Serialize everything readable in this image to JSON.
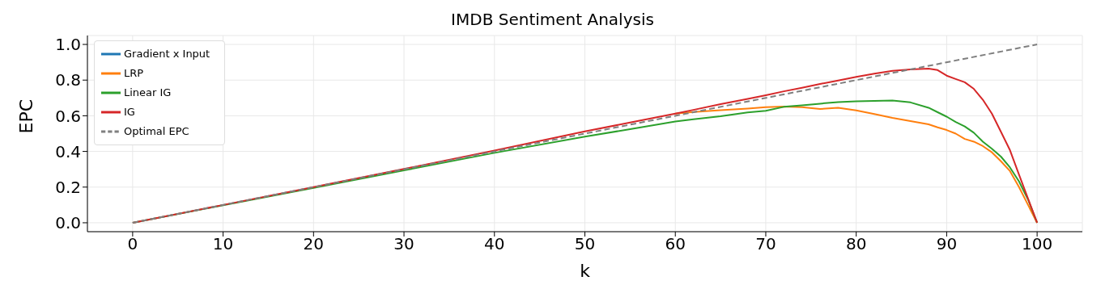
{
  "chart_data": {
    "type": "line",
    "title": "IMDB Sentiment Analysis",
    "xlabel": "k",
    "ylabel": "EPC",
    "x": [
      0,
      10,
      20,
      30,
      40,
      50,
      55,
      60,
      62,
      65,
      68,
      70,
      72,
      74,
      76,
      78,
      80,
      82,
      84,
      86,
      88,
      89,
      90,
      91,
      92,
      93,
      94,
      95,
      96,
      97,
      98,
      99,
      100
    ],
    "series": [
      {
        "name": "Gradient x Input",
        "color": "#1f77b4",
        "values": [
          null,
          null,
          null,
          null,
          null,
          null,
          null,
          null,
          null,
          null,
          null,
          null,
          null,
          null,
          null,
          null,
          null,
          null,
          null,
          null,
          null,
          null,
          null,
          null,
          null,
          null,
          null,
          null,
          null,
          null,
          null,
          null,
          null
        ]
      },
      {
        "name": "LRP",
        "color": "#ff7f0e",
        "values": [
          null,
          null,
          null,
          null,
          null,
          null,
          null,
          0.612,
          0.621,
          0.631,
          0.64,
          0.648,
          0.652,
          0.648,
          0.638,
          0.645,
          0.63,
          0.61,
          0.588,
          0.57,
          0.552,
          0.535,
          0.52,
          0.5,
          0.47,
          0.455,
          0.43,
          0.395,
          0.345,
          0.29,
          0.2,
          0.1,
          0
        ]
      },
      {
        "name": "Linear IG",
        "color": "#2ca02c",
        "values": [
          0,
          0.098,
          0.196,
          0.294,
          0.392,
          0.483,
          0.525,
          0.568,
          0.58,
          0.597,
          0.619,
          0.628,
          0.65,
          0.658,
          0.668,
          0.677,
          0.681,
          0.683,
          0.686,
          0.675,
          0.645,
          0.62,
          0.595,
          0.565,
          0.54,
          0.505,
          0.455,
          0.415,
          0.371,
          0.31,
          0.232,
          0.13,
          0
        ]
      },
      {
        "name": "IG",
        "color": "#d62728",
        "values": [
          0,
          0.1,
          0.2,
          0.302,
          0.405,
          0.512,
          0.562,
          0.612,
          0.633,
          0.665,
          0.695,
          0.715,
          0.737,
          0.757,
          0.778,
          0.798,
          0.818,
          0.836,
          0.852,
          0.86,
          0.864,
          0.856,
          0.825,
          0.806,
          0.788,
          0.751,
          0.69,
          0.612,
          0.51,
          0.407,
          0.27,
          0.135,
          0
        ]
      },
      {
        "name": "Optimal EPC",
        "color": "#7f7f7f",
        "line_style": "dashed",
        "x": [
          0,
          100
        ],
        "values": [
          0,
          1
        ]
      }
    ],
    "xlim": [
      -5,
      105
    ],
    "xticks": [
      0,
      10,
      20,
      30,
      40,
      50,
      60,
      70,
      80,
      90,
      100
    ],
    "ylim": [
      -0.05,
      1.05
    ],
    "yticks": [
      {
        "value": 0,
        "label": "0.0"
      },
      {
        "value": 0.2,
        "label": "0.2"
      },
      {
        "value": 0.4,
        "label": "0.4"
      },
      {
        "value": 0.6,
        "label": "0.6"
      },
      {
        "value": 0.8,
        "label": "0.8"
      },
      {
        "value": 1,
        "label": "1.0"
      }
    ],
    "grid": true,
    "legend": "top left",
    "marker": "none",
    "line_style": "solid"
  }
}
